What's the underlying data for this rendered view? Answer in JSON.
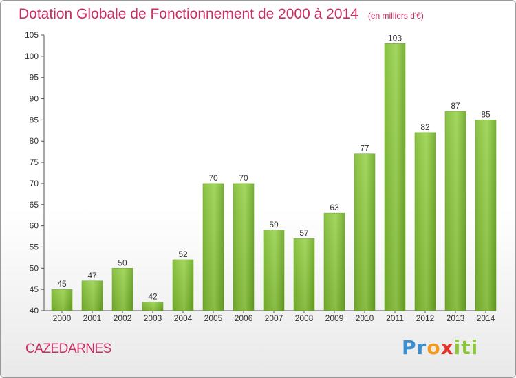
{
  "title": "Dotation Globale de Fonctionnement de 2000 à 2014",
  "unit": "(en milliers d'€)",
  "commune": "CAZEDARNES",
  "logo": {
    "letters": [
      "P",
      "r",
      "o",
      "x",
      "i",
      "t",
      "i"
    ],
    "colors": [
      "#3a8fd0",
      "#3a8fd0",
      "#f39a1e",
      "#e5332a",
      "#8cc63e",
      "#8cc63e",
      "#8cc63e"
    ]
  },
  "chart_data": {
    "type": "bar",
    "title": "Dotation Globale de Fonctionnement de 2000 à 2014",
    "categories": [
      "2000",
      "2001",
      "2002",
      "2003",
      "2004",
      "2005",
      "2006",
      "2007",
      "2008",
      "2009",
      "2010",
      "2011",
      "2012",
      "2013",
      "2014"
    ],
    "values": [
      45,
      47,
      50,
      42,
      52,
      70,
      70,
      59,
      57,
      63,
      77,
      103,
      82,
      87,
      85
    ],
    "ylim": [
      40,
      105
    ],
    "yticks": [
      40,
      45,
      50,
      55,
      60,
      65,
      70,
      75,
      80,
      85,
      90,
      95,
      100,
      105
    ],
    "xlabel": "",
    "ylabel": "",
    "grid": false,
    "bar_color": "#8cc63e",
    "bar_color_dark": "#5f9e1c"
  }
}
